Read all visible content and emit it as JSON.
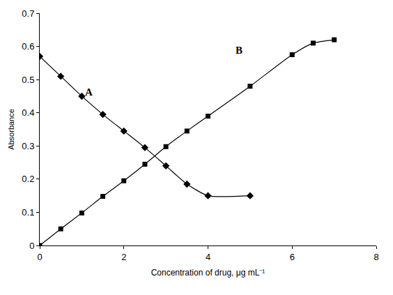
{
  "chart_data": {
    "type": "line",
    "x_label": "Concentration of drug, μg mL⁻¹",
    "y_label": "Absorbance",
    "xlim": [
      0,
      8
    ],
    "xticks": [
      0,
      2,
      4,
      6,
      8
    ],
    "ylim": [
      0,
      0.7
    ],
    "yticks": [
      0,
      0.1,
      0.2,
      0.3,
      0.4,
      0.5,
      0.6,
      0.7
    ],
    "grid": false,
    "series": [
      {
        "name": "A",
        "color": "#000000",
        "marker": "diamond",
        "line_style": "solid",
        "x": [
          0,
          0.5,
          1,
          1.5,
          2,
          2.5,
          3,
          3.5,
          4,
          5
        ],
        "values": [
          0.57,
          0.51,
          0.45,
          0.395,
          0.345,
          0.295,
          0.24,
          0.185,
          0.15,
          0.15
        ]
      },
      {
        "name": "B",
        "color": "#000000",
        "marker": "square",
        "line_style": "solid",
        "x": [
          0,
          0.5,
          1,
          1.5,
          2,
          2.5,
          3,
          3.5,
          4,
          5,
          6,
          6.5,
          7
        ],
        "values": [
          0,
          0.05,
          0.098,
          0.148,
          0.195,
          0.245,
          0.298,
          0.345,
          0.39,
          0.48,
          0.575,
          0.61,
          0.62
        ]
      }
    ]
  }
}
